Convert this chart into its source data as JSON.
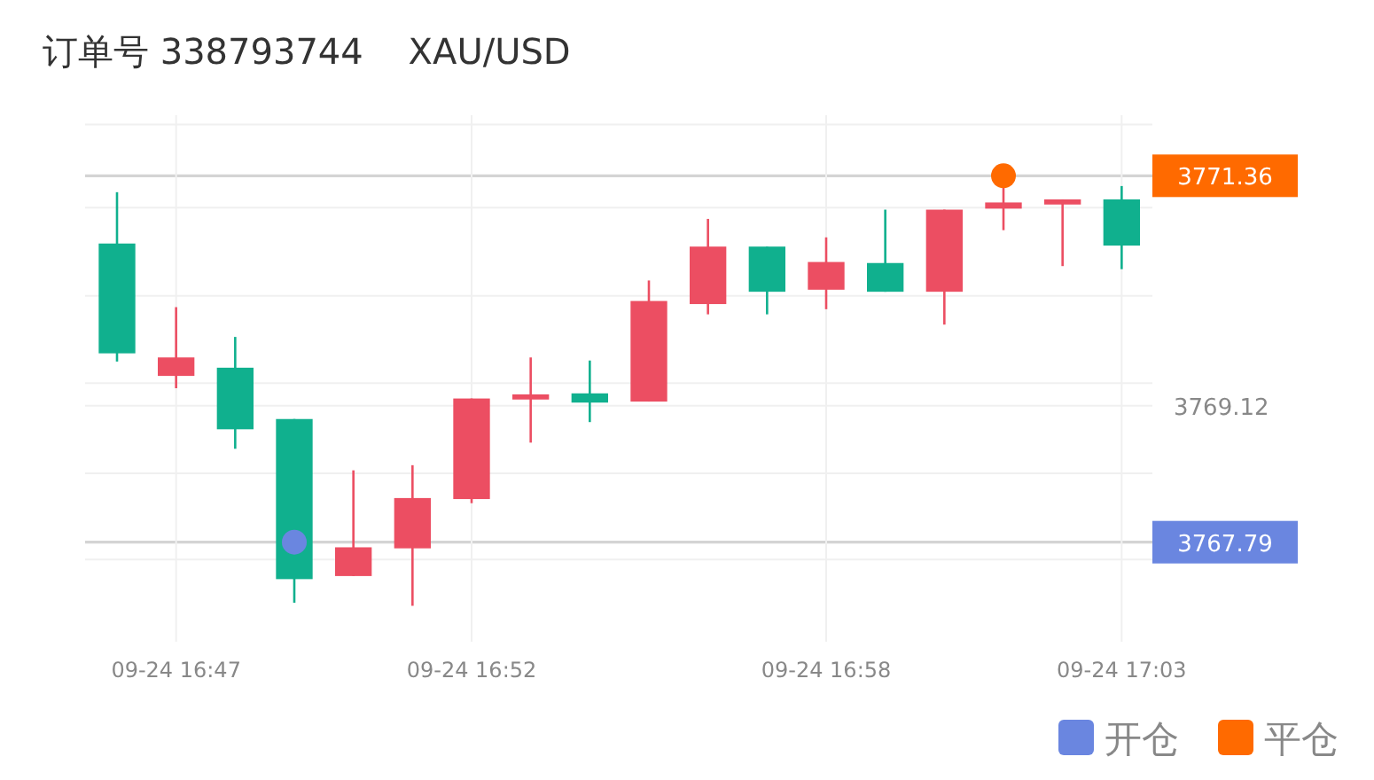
{
  "chart_data": {
    "type": "candlestick",
    "title": "订单号 338793744    XAU/USD",
    "categories": [
      null,
      "09-24 16:47",
      null,
      null,
      null,
      null,
      "09-24 16:52",
      null,
      null,
      null,
      null,
      null,
      "09-24 16:58",
      null,
      null,
      null,
      null,
      "09-24 17:03"
    ],
    "ohlc": [
      [
        3770.7,
        3771.2,
        3769.55,
        3769.63
      ],
      [
        3769.41,
        3770.08,
        3769.29,
        3769.59
      ],
      [
        3769.49,
        3769.79,
        3768.7,
        3768.89
      ],
      [
        3768.99,
        3768.99,
        3767.2,
        3767.43
      ],
      [
        3767.46,
        3768.49,
        3767.46,
        3767.74
      ],
      [
        3767.73,
        3768.54,
        3767.17,
        3768.22
      ],
      [
        3768.21,
        3769.19,
        3768.17,
        3769.19
      ],
      [
        3769.18,
        3769.59,
        3768.76,
        3769.23
      ],
      [
        3769.24,
        3769.56,
        3768.96,
        3769.15
      ],
      [
        3769.16,
        3770.34,
        3769.16,
        3770.14
      ],
      [
        3770.11,
        3770.94,
        3770.01,
        3770.67
      ],
      [
        3770.67,
        3770.67,
        3770.01,
        3770.23
      ],
      [
        3770.25,
        3770.76,
        3770.06,
        3770.52
      ],
      [
        3770.51,
        3771.03,
        3770.23,
        3770.23
      ],
      [
        3770.23,
        3771.03,
        3769.91,
        3771.03
      ],
      [
        3771.04,
        3771.29,
        3770.83,
        3771.1
      ],
      [
        3771.08,
        3771.13,
        3770.48,
        3771.13
      ],
      [
        3771.13,
        3771.26,
        3770.45,
        3770.68
      ]
    ],
    "colors": [
      "#10b08e",
      "#ec4e62",
      "#10b08e",
      "#10b08e",
      "#ec4e62",
      "#ec4e62",
      "#ec4e62",
      "#ec4e62",
      "#10b08e",
      "#ec4e62",
      "#ec4e62",
      "#10b08e",
      "#ec4e62",
      "#10b08e",
      "#ec4e62",
      "#ec4e62",
      "#ec4e62",
      "#10b08e"
    ],
    "series": [
      {
        "name": "开仓",
        "type": "scatter",
        "color": "#6a86e0",
        "marker": "circle",
        "values": [
          null,
          null,
          null,
          3767.79,
          null,
          null,
          null,
          null,
          null,
          null,
          null,
          null,
          null,
          null,
          null,
          null,
          null,
          null
        ]
      },
      {
        "name": "平仓",
        "type": "scatter",
        "color": "#ff6a00",
        "marker": "circle",
        "values": [
          null,
          null,
          null,
          null,
          null,
          null,
          null,
          null,
          null,
          null,
          null,
          null,
          null,
          null,
          null,
          3771.36,
          null,
          null
        ]
      }
    ],
    "ylim": [
      3766.82,
      3771.95
    ],
    "yticks": [
      {
        "value": 3767.62,
        "label": null
      },
      3767.79,
      {
        "value": 3768.46,
        "label": null
      },
      3769.12,
      {
        "value": 3769.34,
        "label": null
      },
      {
        "value": 3770.19,
        "label": null
      },
      {
        "value": 3771.05,
        "label": null
      },
      3771.36,
      {
        "value": 3771.86,
        "label": null
      }
    ],
    "grid": true,
    "legend": "bottom right"
  }
}
